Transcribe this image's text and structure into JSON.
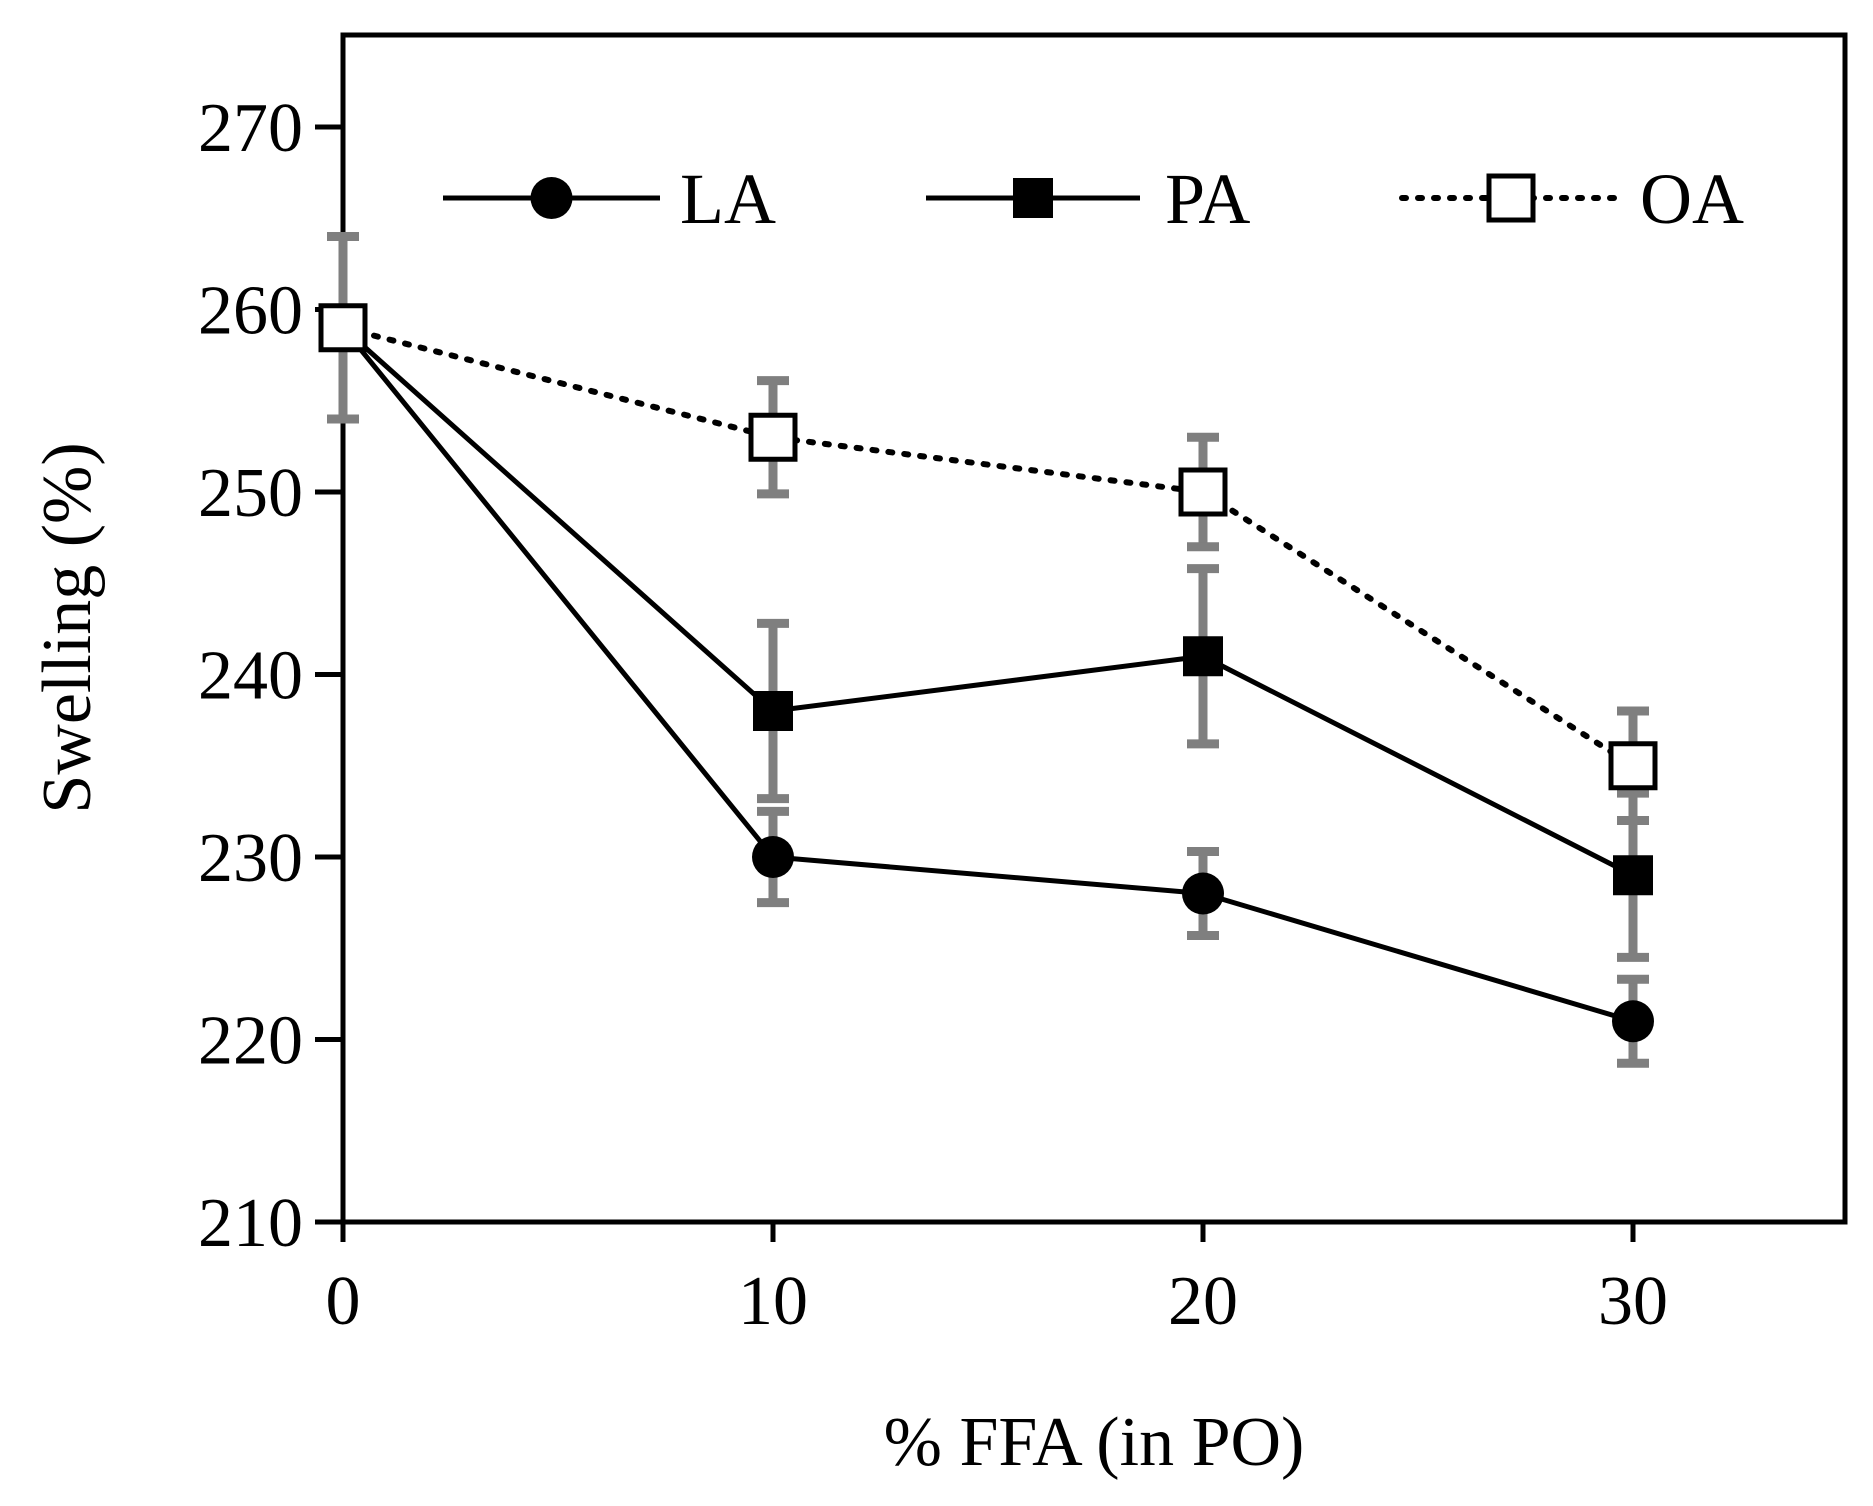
{
  "chart_data": {
    "type": "line",
    "xlabel": "% FFA (in PO)",
    "ylabel": "Swelling (%)",
    "xlim": [
      0,
      35
    ],
    "ylim": [
      210,
      275
    ],
    "x_ticks": [
      0,
      10,
      20,
      30
    ],
    "y_ticks": [
      210,
      220,
      230,
      240,
      250,
      260,
      270
    ],
    "x_tick_labels": [
      "0",
      "10",
      "20",
      "30"
    ],
    "y_tick_labels": [
      "210",
      "220",
      "230",
      "240",
      "250",
      "260",
      "270"
    ],
    "grid": false,
    "legend_position": "top",
    "error_bar_color": "#7f7f7f",
    "series": [
      {
        "name": "LA",
        "marker": "filled-circle",
        "line": "solid",
        "color": "#000000",
        "x": [
          0,
          10,
          20,
          30
        ],
        "y": [
          259,
          230,
          228,
          221
        ],
        "error": [
          5,
          2.5,
          2.3,
          2.3
        ]
      },
      {
        "name": "PA",
        "marker": "filled-square",
        "line": "solid",
        "color": "#000000",
        "x": [
          0,
          10,
          20,
          30
        ],
        "y": [
          259,
          238,
          241,
          229
        ],
        "error": [
          5,
          4.8,
          4.8,
          4.5
        ]
      },
      {
        "name": "OA",
        "marker": "open-square",
        "line": "dotted",
        "color": "#000000",
        "x": [
          0,
          10,
          20,
          30
        ],
        "y": [
          259,
          253,
          250,
          235
        ],
        "error": [
          5,
          3.1,
          3,
          3
        ]
      }
    ]
  }
}
